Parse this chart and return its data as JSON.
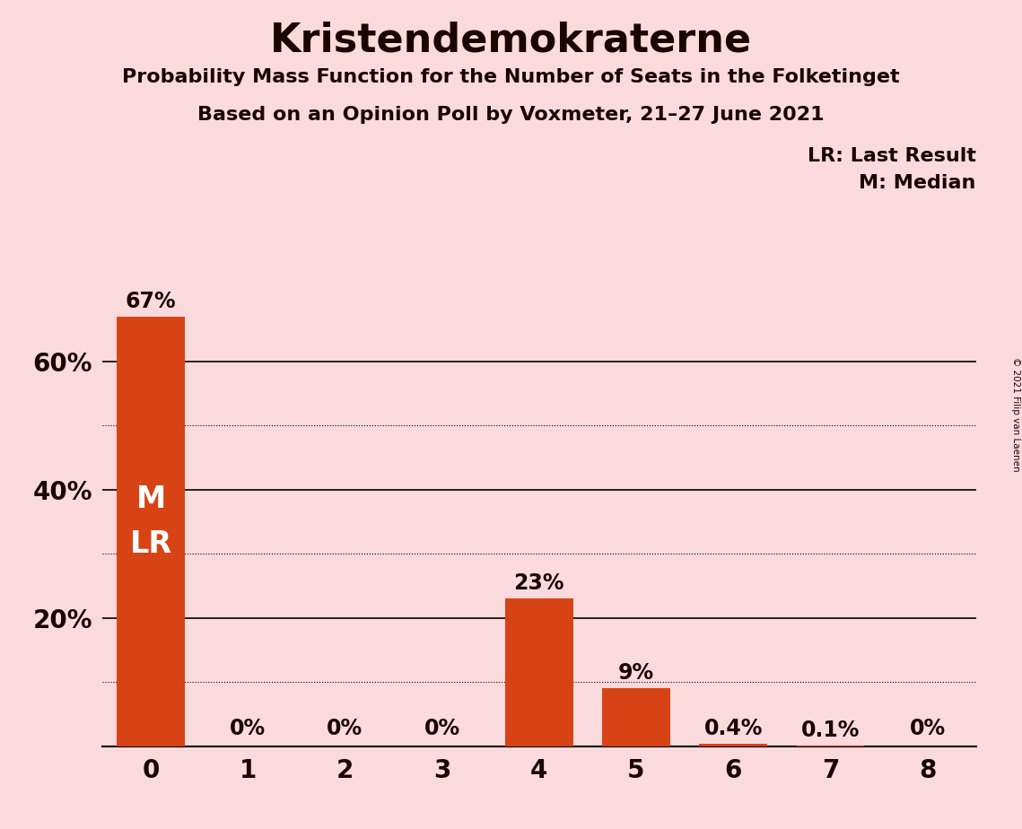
{
  "title": "Kristendemokraterne",
  "subtitle1": "Probability Mass Function for the Number of Seats in the Folketinget",
  "subtitle2": "Based on an Opinion Poll by Voxmeter, 21–27 June 2021",
  "copyright": "© 2021 Filip van Laenen",
  "categories": [
    0,
    1,
    2,
    3,
    4,
    5,
    6,
    7,
    8
  ],
  "values": [
    0.67,
    0.0,
    0.0,
    0.0,
    0.23,
    0.09,
    0.004,
    0.001,
    0.0
  ],
  "labels": [
    "67%",
    "0%",
    "0%",
    "0%",
    "23%",
    "9%",
    "0.4%",
    "0.1%",
    "0%"
  ],
  "bar_color": "#D84315",
  "background_color": "#FADADD",
  "text_color": "#1a0500",
  "bar_text_color_inside": "#FFFFFF",
  "bar_text_color_outside": "#1a0500",
  "ylim_max": 0.75,
  "solid_grid_lines": [
    0.2,
    0.4,
    0.6
  ],
  "dotted_grid_lines": [
    0.1,
    0.3,
    0.5
  ],
  "legend_line1": "LR: Last Result",
  "legend_line2": "M: Median"
}
